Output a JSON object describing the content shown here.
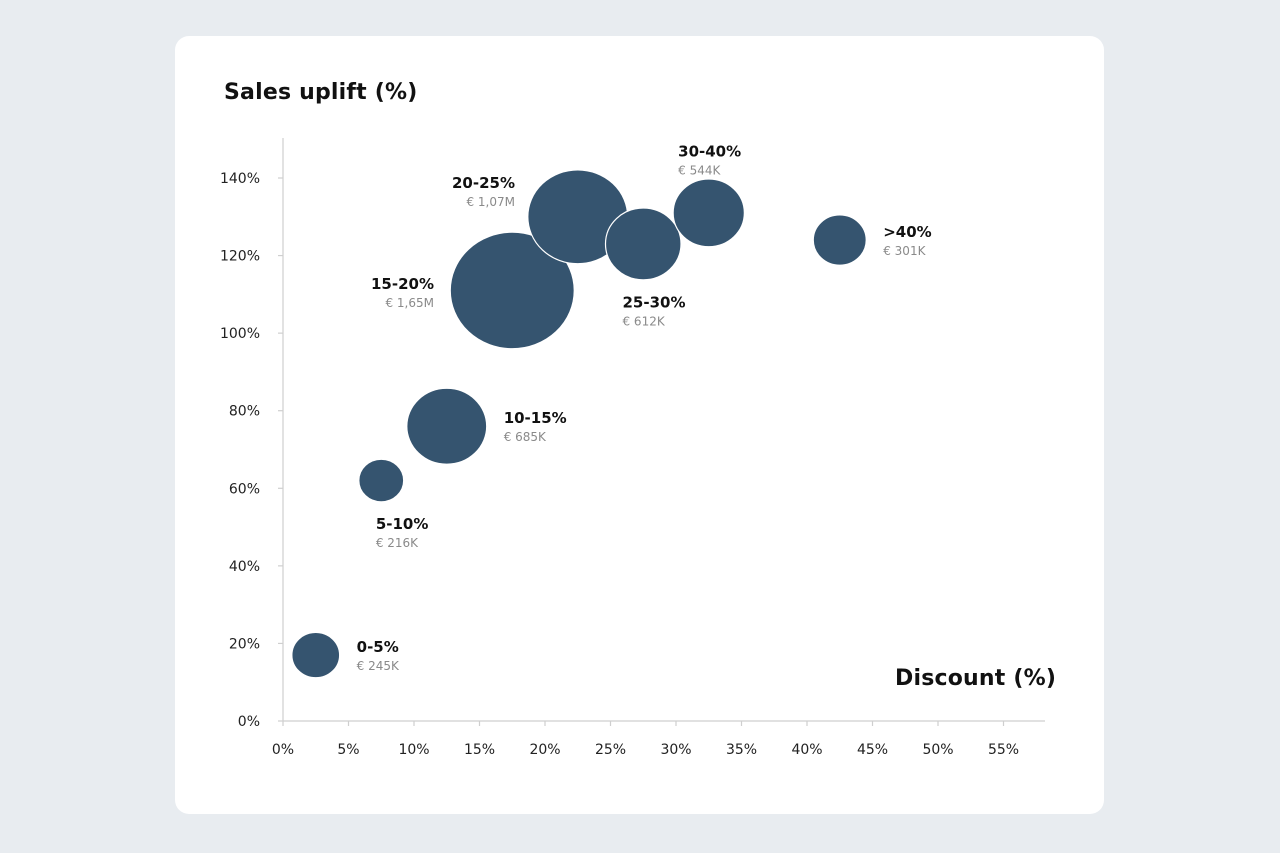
{
  "chart_data": {
    "type": "scatter",
    "variant": "bubble",
    "xlabel": "Discount (%)",
    "ylabel": "Sales uplift (%)",
    "xlim": [
      0,
      55
    ],
    "ylim": [
      0,
      150
    ],
    "x_ticks": [
      "0%",
      "5%",
      "10%",
      "15%",
      "20%",
      "25%",
      "30%",
      "35%",
      "40%",
      "45%",
      "50%",
      "55%"
    ],
    "y_ticks": [
      "0%",
      "20%",
      "40%",
      "60%",
      "80%",
      "100%",
      "120%",
      "140%"
    ],
    "bubble_color": "#35546f",
    "points": [
      {
        "label": "0-5%",
        "value": "€ 245K",
        "x": 2.5,
        "y": 17,
        "size": 245,
        "label_side": "right"
      },
      {
        "label": "5-10%",
        "value": "€ 216K",
        "x": 7.5,
        "y": 62,
        "size": 216,
        "label_side": "below"
      },
      {
        "label": "10-15%",
        "value": "€ 685K",
        "x": 12.5,
        "y": 76,
        "size": 685,
        "label_side": "right"
      },
      {
        "label": "15-20%",
        "value": "€ 1,65M",
        "x": 17.5,
        "y": 111,
        "size": 1650,
        "label_side": "left"
      },
      {
        "label": "20-25%",
        "value": "€ 1,07M",
        "x": 22.5,
        "y": 130,
        "size": 1070,
        "label_side": "left"
      },
      {
        "label": "25-30%",
        "value": "€ 612K",
        "x": 27.5,
        "y": 123,
        "size": 612,
        "label_side": "below"
      },
      {
        "label": "30-40%",
        "value": "€ 544K",
        "x": 32.5,
        "y": 131,
        "size": 544,
        "label_side": "above"
      },
      {
        "label": ">40%",
        "value": "€ 301K",
        "x": 42.5,
        "y": 124,
        "size": 301,
        "label_side": "right"
      }
    ]
  }
}
